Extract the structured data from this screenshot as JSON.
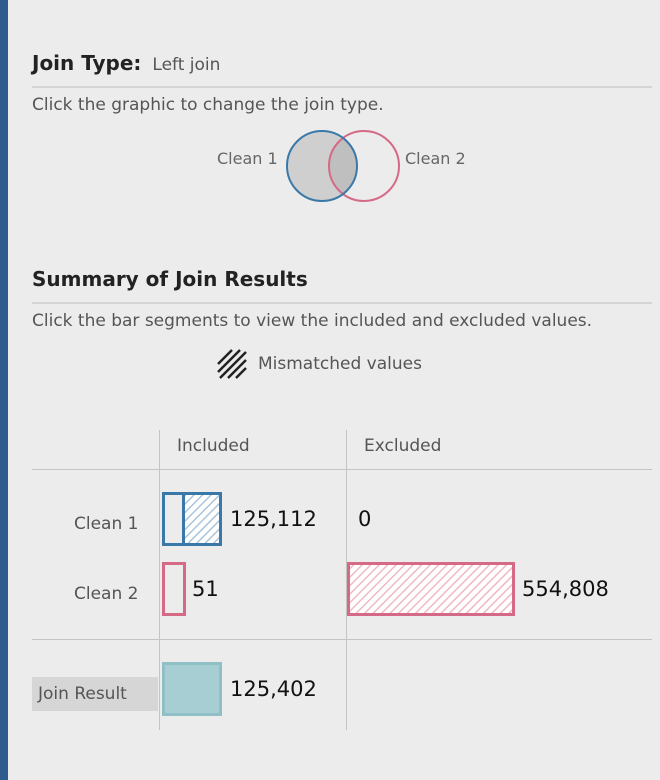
{
  "join_type": {
    "label": "Join Type:",
    "value": "Left join",
    "hint": "Click the graphic to change the join type.",
    "left_table": "Clean 1",
    "right_table": "Clean 2"
  },
  "summary": {
    "title": "Summary of Join Results",
    "hint": "Click the bar segments to view the included and excluded values.",
    "legend_label": "Mismatched values",
    "columns": {
      "included": "Included",
      "excluded": "Excluded"
    },
    "rows": [
      {
        "label": "Clean 1",
        "included": "125,112",
        "excluded": "0"
      },
      {
        "label": "Clean 2",
        "included": "51",
        "excluded": "554,808"
      }
    ],
    "join_result": {
      "label": "Join Result",
      "included": "125,402"
    }
  },
  "colors": {
    "clean1": "#3a78a8",
    "clean2": "#d46a85",
    "join_result": "#a7cfd3",
    "accent": "#2f5b8d"
  }
}
